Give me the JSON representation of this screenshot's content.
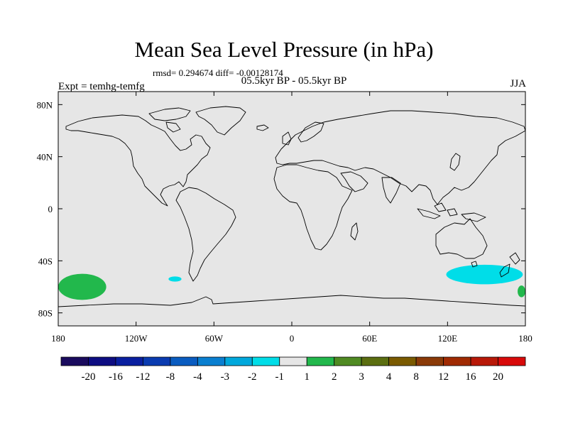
{
  "header": {
    "title": "Mean Sea Level Pressure (in hPa)",
    "stats": "rmsd= 0.294674 diff= -0.00128174",
    "subtitle": "05.5kyr BP - 05.5kyr BP",
    "left_label": "Expt = temhg-temfg",
    "right_label": "JJA"
  },
  "chart_data": {
    "type": "heatmap",
    "title": "Mean Sea Level Pressure (in hPa)",
    "projection": "cylindrical equidistant",
    "xlim": [
      -180,
      180
    ],
    "ylim": [
      -90,
      90
    ],
    "x_ticks": [
      {
        "value": -180,
        "label": "180"
      },
      {
        "value": -120,
        "label": "120W"
      },
      {
        "value": -60,
        "label": "60W"
      },
      {
        "value": 0,
        "label": "0"
      },
      {
        "value": 60,
        "label": "60E"
      },
      {
        "value": 120,
        "label": "120E"
      },
      {
        "value": 180,
        "label": "180"
      }
    ],
    "y_ticks": [
      {
        "value": 80,
        "label": "80N"
      },
      {
        "value": 40,
        "label": "40N"
      },
      {
        "value": 0,
        "label": "0"
      },
      {
        "value": -40,
        "label": "40S"
      },
      {
        "value": -80,
        "label": "80S"
      }
    ],
    "background_bin": "-1 to 1",
    "background_color": "#e6e6e6",
    "anomaly_regions": [
      {
        "name": "South Pacific positive anomaly",
        "lon_range": [
          -180,
          -143
        ],
        "lat_range": [
          -70,
          -50
        ],
        "bin": "1 to 2",
        "color": "#22b84c"
      },
      {
        "name": "Southeast Pacific negative anomaly",
        "lon_range": [
          -95,
          -85
        ],
        "lat_range": [
          -56,
          -52
        ],
        "bin": "-2 to -1",
        "color": "#00dde8"
      },
      {
        "name": "South of Australia negative anomaly",
        "lon_range": [
          119,
          178
        ],
        "lat_range": [
          -58,
          -43
        ],
        "bin": "-2 to -1",
        "color": "#00dde8"
      },
      {
        "name": "Dateline positive anomaly",
        "lon_range": [
          174,
          180
        ],
        "lat_range": [
          -68,
          -59
        ],
        "bin": "1 to 2",
        "color": "#22b84c"
      }
    ],
    "colorbar": {
      "levels": [
        "-20",
        "-16",
        "-12",
        "-8",
        "-4",
        "-3",
        "-2",
        "-1",
        "1",
        "2",
        "3",
        "4",
        "8",
        "12",
        "16",
        "20"
      ],
      "colors": [
        "#1a0b5e",
        "#0e0d82",
        "#0a1fa0",
        "#0a3bb0",
        "#0a5cc0",
        "#0a7fd0",
        "#00a8dc",
        "#00dde8",
        "#e6e6e6",
        "#22b84c",
        "#4f8a22",
        "#5b6e10",
        "#7a5a00",
        "#8a3a08",
        "#a02a02",
        "#b81808",
        "#d80a0a"
      ]
    }
  }
}
